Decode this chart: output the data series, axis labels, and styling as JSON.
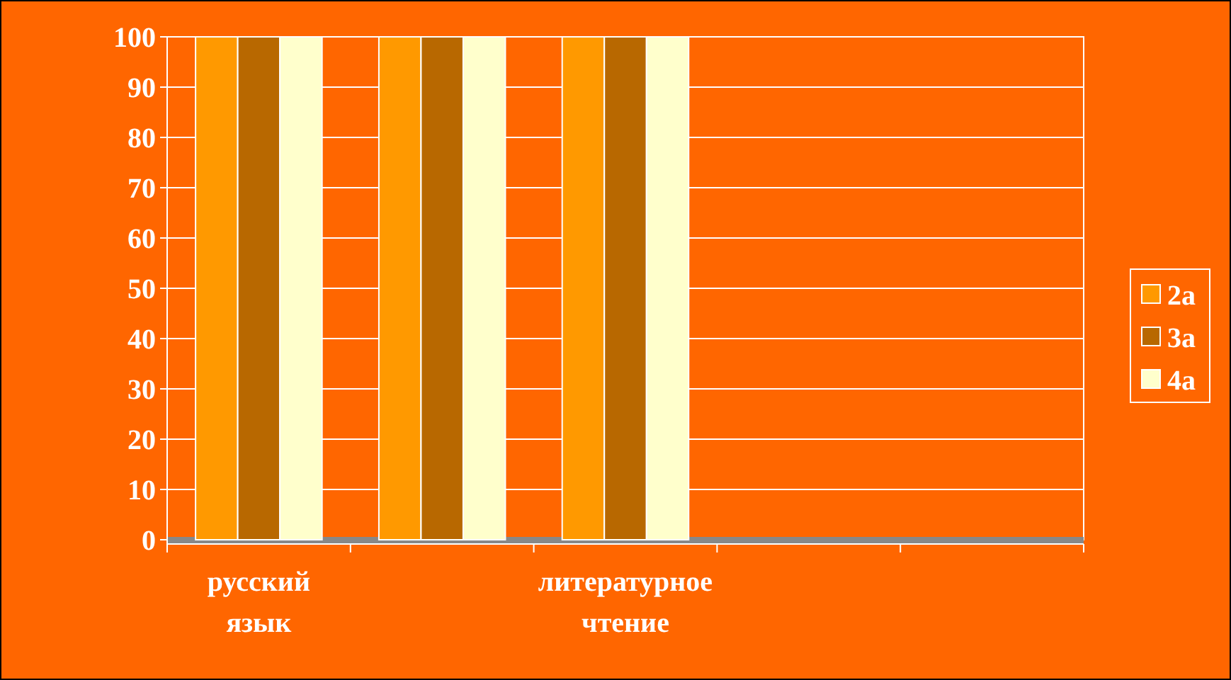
{
  "chart_data": {
    "type": "bar",
    "categories": [
      "русский язык",
      null,
      "литературное чтение",
      null,
      null
    ],
    "series": [
      {
        "name": "2а",
        "color": "#ff9900",
        "values": [
          100,
          100,
          100,
          null,
          null
        ]
      },
      {
        "name": "3а",
        "color": "#b86800",
        "values": [
          100,
          100,
          100,
          null,
          null
        ]
      },
      {
        "name": "4а",
        "color": "#ffffcc",
        "values": [
          100,
          100,
          100,
          null,
          null
        ]
      }
    ],
    "ylim": [
      0,
      100
    ],
    "yticks": [
      0,
      10,
      20,
      30,
      40,
      50,
      60,
      70,
      80,
      90,
      100
    ],
    "grid": "y",
    "legend": "right"
  }
}
